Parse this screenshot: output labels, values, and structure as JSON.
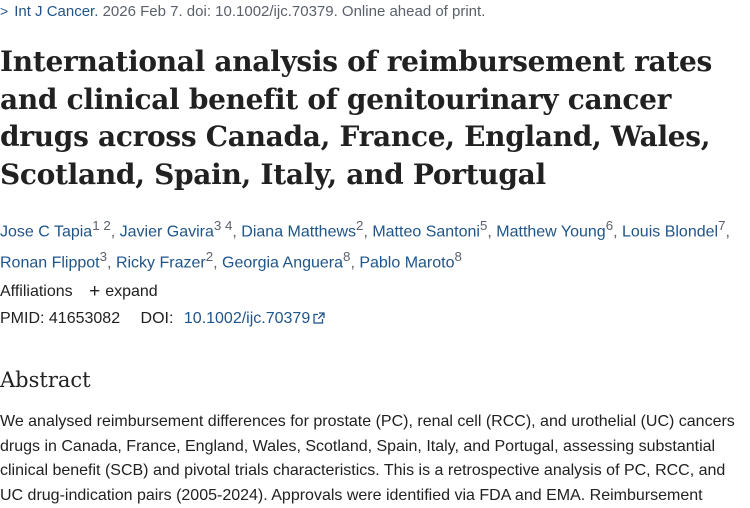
{
  "citation": {
    "chevron": ">",
    "journal": "Int J Cancer.",
    "details": "2026 Feb 7. doi: 10.1002/ijc.70379. Online ahead of print."
  },
  "title": "International analysis of reimbursement rates and clinical benefit of genitourinary cancer drugs across Canada, France, England, Wales, Scotland, Spain, Italy, and Portugal",
  "authors": [
    {
      "name": "Jose C Tapia",
      "aff": "1 2"
    },
    {
      "name": "Javier Gavira",
      "aff": "3 4"
    },
    {
      "name": "Diana Matthews",
      "aff": "2"
    },
    {
      "name": "Matteo Santoni",
      "aff": "5"
    },
    {
      "name": "Matthew Young",
      "aff": "6"
    },
    {
      "name": "Louis Blondel",
      "aff": "7"
    },
    {
      "name": "Ronan Flippot",
      "aff": "3"
    },
    {
      "name": "Ricky Frazer",
      "aff": "2"
    },
    {
      "name": "Georgia Anguera",
      "aff": "8"
    },
    {
      "name": "Pablo Maroto",
      "aff": "8"
    }
  ],
  "affiliations": {
    "label": "Affiliations",
    "expand_icon": "+",
    "expand_label": "expand"
  },
  "ids": {
    "pmid_label": "PMID:",
    "pmid": "41653082",
    "doi_label": "DOI:",
    "doi": "10.1002/ijc.70379"
  },
  "abstract": {
    "heading": "Abstract",
    "text": "We analysed reimbursement differences for prostate (PC), renal cell (RCC), and urothelial (UC) cancers drugs in Canada, France, England, Wales, Scotland, Spain, Italy, and Portugal, assessing substantial clinical benefit (SCB) and pivotal trials characteristics. This is a retrospective analysis of PC, RCC, and UC drug-indication pairs (2005-2024). Approvals were identified via FDA and EMA. Reimbursement"
  },
  "colors": {
    "link": "#20558a",
    "text": "#212121",
    "muted": "#5b616b"
  }
}
